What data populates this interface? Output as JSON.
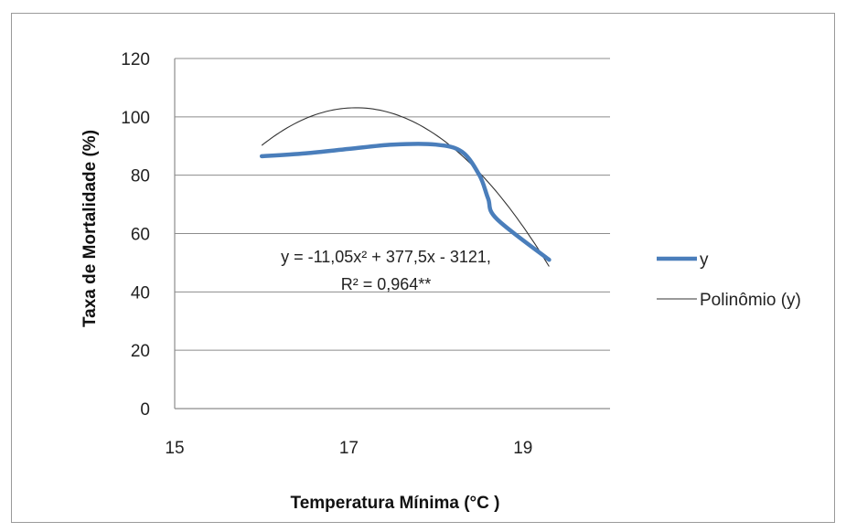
{
  "chart_data": {
    "type": "line",
    "xlabel": "Temperatura Mínima (°C )",
    "ylabel": "Taxa de Mortalidade (%)",
    "xlim": [
      15,
      20
    ],
    "ylim": [
      0,
      120
    ],
    "x_ticks": [
      15,
      17,
      19
    ],
    "y_ticks": [
      0,
      20,
      40,
      60,
      80,
      100,
      120
    ],
    "grid": "horizontal",
    "legend_position": "right",
    "series": [
      {
        "name": "y",
        "color": "#4a7ebb",
        "points": [
          [
            16,
            86.5
          ],
          [
            16.5,
            87.5
          ],
          [
            17,
            89
          ],
          [
            17.5,
            90.5
          ],
          [
            18,
            90.5
          ],
          [
            18.3,
            88
          ],
          [
            18.5,
            80
          ],
          [
            18.6,
            72
          ],
          [
            18.7,
            65
          ],
          [
            19.3,
            51
          ]
        ]
      },
      {
        "name": "Polinômio (y)",
        "color": "#333333",
        "type": "polynomial_trendline",
        "coefficients": [
          -11.05,
          377.5,
          -3121
        ],
        "x_range": [
          16,
          19.3
        ]
      }
    ],
    "annotation": {
      "line1": "y = -11,05x² + 377,5x - 3121,",
      "line2": "R² = 0,964**"
    }
  }
}
